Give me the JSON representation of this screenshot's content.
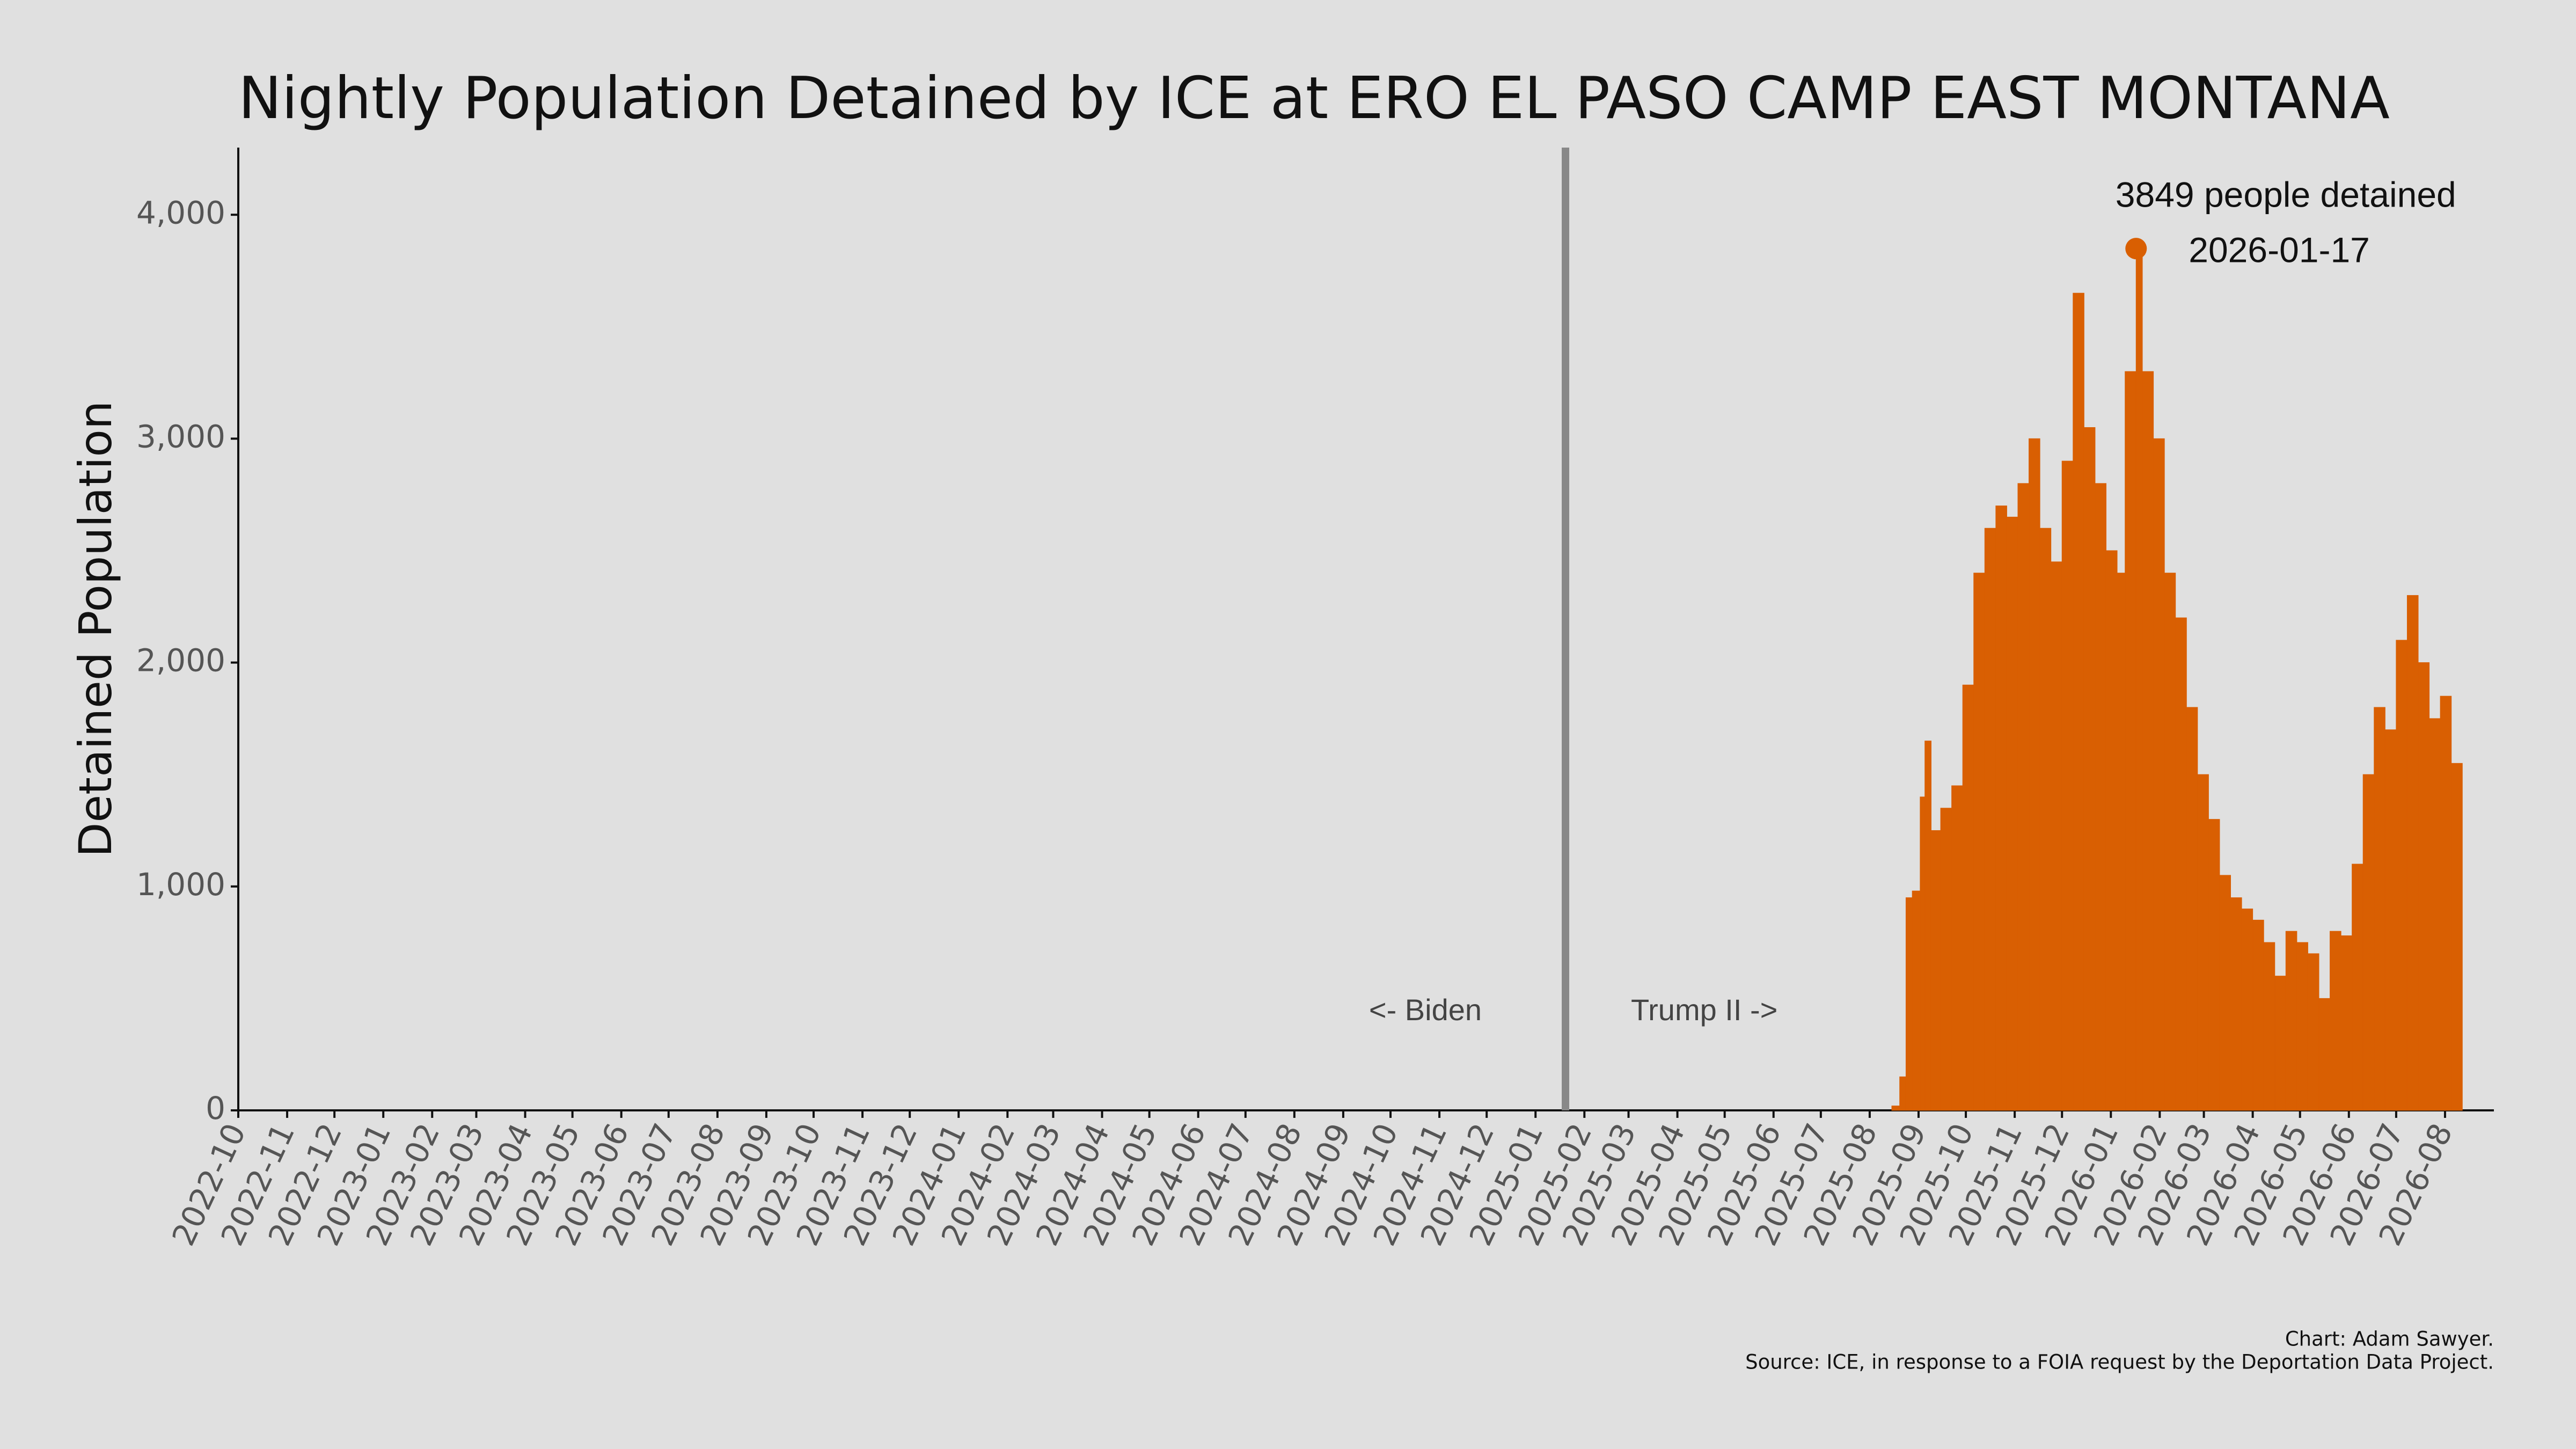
{
  "chart_data": {
    "type": "bar",
    "title": "Nightly Population Detained by ICE at ERO EL PASO CAMP EAST MONTANA",
    "y_label": "Detained Population",
    "color": "#d95f02",
    "x": [
      "2025-08-01",
      "2025-08-08",
      "2025-08-15",
      "2025-08-20",
      "2025-08-24",
      "2025-08-28",
      "2025-09-02",
      "2025-09-05",
      "2025-09-09",
      "2025-09-15",
      "2025-09-22",
      "2025-09-29",
      "2025-10-06",
      "2025-10-13",
      "2025-10-20",
      "2025-10-27",
      "2025-11-03",
      "2025-11-10",
      "2025-11-17",
      "2025-11-24",
      "2025-12-01",
      "2025-12-08",
      "2025-12-15",
      "2025-12-22",
      "2025-12-29",
      "2026-01-05",
      "2026-01-10",
      "2026-01-17",
      "2026-01-21",
      "2026-01-28",
      "2026-02-04",
      "2026-02-11",
      "2026-02-18",
      "2026-02-25",
      "2026-03-04",
      "2026-03-11",
      "2026-03-18",
      "2026-03-25",
      "2026-04-01",
      "2026-04-08",
      "2026-04-15",
      "2026-04-22",
      "2026-04-29",
      "2026-05-06",
      "2026-05-13",
      "2026-05-20",
      "2026-05-27",
      "2026-06-03",
      "2026-06-10",
      "2026-06-17",
      "2026-06-24",
      "2026-07-01",
      "2026-07-08",
      "2026-07-15",
      "2026-07-22",
      "2026-07-29",
      "2026-08-05"
    ],
    "values": [
      0,
      0,
      20,
      150,
      950,
      980,
      1400,
      1650,
      1250,
      1350,
      1450,
      1900,
      2400,
      2600,
      2700,
      2650,
      2800,
      3000,
      2600,
      2450,
      2900,
      3650,
      3050,
      2800,
      2500,
      2400,
      3300,
      3849,
      3300,
      3000,
      2400,
      2200,
      1800,
      1500,
      1300,
      1050,
      950,
      900,
      850,
      750,
      600,
      800,
      750,
      700,
      500,
      800,
      780,
      1100,
      1500,
      1800,
      1700,
      2100,
      2300,
      2000,
      1750,
      1850,
      1550
    ],
    "xlim": [
      "2022-10-01",
      "2026-09-01"
    ],
    "xticks": [
      "2022-10",
      "2022-11",
      "2022-12",
      "2023-01",
      "2023-02",
      "2023-03",
      "2023-04",
      "2023-05",
      "2023-06",
      "2023-07",
      "2023-08",
      "2023-09",
      "2023-10",
      "2023-11",
      "2023-12",
      "2024-01",
      "2024-02",
      "2024-03",
      "2024-04",
      "2024-05",
      "2024-06",
      "2024-07",
      "2024-08",
      "2024-09",
      "2024-10",
      "2024-11",
      "2024-12",
      "2025-01",
      "2025-02",
      "2025-03",
      "2025-04",
      "2025-05",
      "2025-06",
      "2025-07",
      "2025-08",
      "2025-09",
      "2025-10",
      "2025-11",
      "2025-12",
      "2026-01",
      "2026-02",
      "2026-03",
      "2026-04",
      "2026-05",
      "2026-06",
      "2026-07",
      "2026-08"
    ],
    "ylim": [
      0,
      4300
    ],
    "yticks": [
      0,
      {
        "value": 1000,
        "label": "1,000"
      },
      {
        "value": 2000,
        "label": "2,000"
      },
      {
        "value": 3000,
        "label": "3,000"
      },
      {
        "value": 4000,
        "label": "4,000"
      }
    ],
    "divider": {
      "x": "2025-01-20",
      "color": "#888888",
      "left_label": "<- Biden",
      "right_label": "Trump II ->"
    },
    "annotation": {
      "x": "2026-01-17",
      "value": 3849,
      "label": "3849 people detained"
    },
    "credit": "Chart: Adam Sawyer.",
    "source": "Source: ICE, in response to a FOIA request by the Deportation Data Project."
  }
}
